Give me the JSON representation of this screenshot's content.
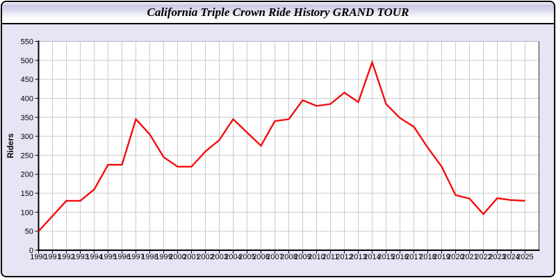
{
  "window": {
    "title": "California Triple Crown Ride History GRAND TOUR"
  },
  "chart_data": {
    "type": "line",
    "title": "California Triple Crown Ride History GRAND TOUR",
    "xlabel": "",
    "ylabel": "Riders",
    "x": [
      1990,
      1991,
      1992,
      1993,
      1994,
      1995,
      1996,
      1997,
      1998,
      1999,
      2000,
      2001,
      2002,
      2003,
      2004,
      2005,
      2006,
      2007,
      2008,
      2009,
      2010,
      2011,
      2012,
      2013,
      2014,
      2015,
      2016,
      2017,
      2018,
      2019,
      2020,
      2021,
      2022,
      2023,
      2024,
      2025
    ],
    "values": [
      50,
      90,
      130,
      130,
      160,
      225,
      225,
      345,
      305,
      245,
      220,
      220,
      260,
      290,
      345,
      310,
      275,
      340,
      345,
      395,
      380,
      385,
      415,
      390,
      495,
      385,
      348,
      325,
      270,
      220,
      145,
      136,
      95,
      137,
      132,
      130
    ],
    "ylim": [
      0,
      550
    ],
    "ytick_step": 50,
    "grid": true,
    "legend": "none",
    "line_color": "#f20d0d",
    "grid_color": "#cbcbcb",
    "axis_color": "#000000",
    "plot_bg": "#ffffff",
    "panel_bg": "#e5e5f5"
  }
}
